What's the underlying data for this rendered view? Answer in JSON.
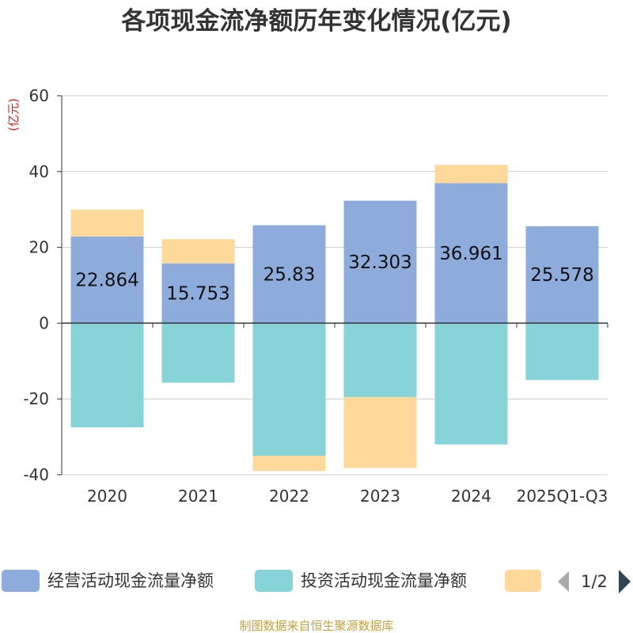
{
  "chart_data": {
    "type": "bar",
    "stacked": true,
    "title": "各项现金流净额历年变化情况(亿元)",
    "ylabel": "(亿元)",
    "ylim": [
      -40,
      60
    ],
    "yticks": [
      60,
      40,
      20,
      0,
      -20,
      -40
    ],
    "categories": [
      "2020",
      "2021",
      "2022",
      "2023",
      "2024",
      "2025Q1-Q3"
    ],
    "series": [
      {
        "name": "经营活动现金流量净额",
        "color": "#8eacdb",
        "values": [
          22.864,
          15.753,
          25.83,
          32.303,
          36.961,
          25.578
        ],
        "labels": [
          "22.864",
          "15.753",
          "25.83",
          "32.303",
          "36.961",
          "25.578"
        ]
      },
      {
        "name": "投资活动现金流量净额",
        "color": "#86d4d8",
        "values": [
          -27.5,
          -15.7,
          -35.0,
          -19.5,
          -32.0,
          -15.0
        ]
      },
      {
        "name": "",
        "color": "#ffd99a",
        "values": [
          7.1,
          6.4,
          -4.0,
          -18.7,
          4.8,
          0
        ]
      }
    ],
    "legend": {
      "position": "bottom",
      "page": "1/2"
    },
    "grid": true
  },
  "footer": "制图数据来自恒生聚源数据库"
}
